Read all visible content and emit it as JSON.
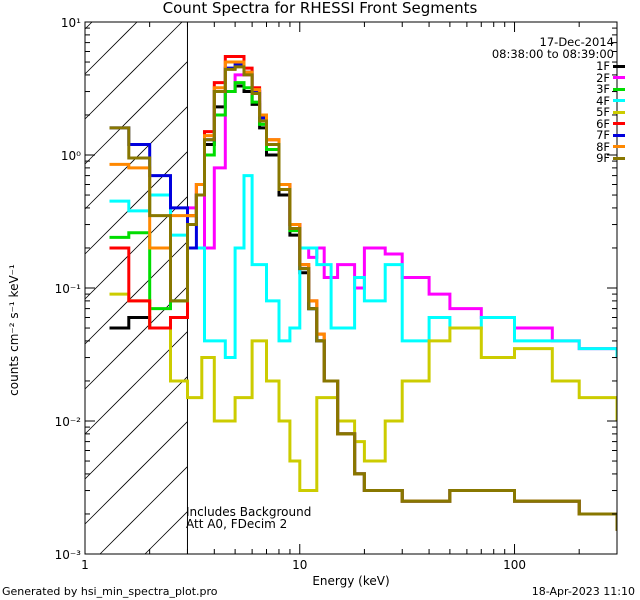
{
  "chart_data": {
    "type": "line",
    "title": "Count Spectra for RHESSI Front Segments",
    "xlabel": "Energy (keV)",
    "ylabel": "counts cm⁻² s⁻¹ keV⁻¹",
    "x_scale": "log",
    "y_scale": "log",
    "xlim": [
      1,
      300
    ],
    "ylim": [
      0.001,
      10
    ],
    "x_ticks": [
      1,
      10,
      100
    ],
    "x_tick_labels": [
      "1",
      "10",
      "100"
    ],
    "y_ticks": [
      0.001,
      0.01,
      0.1,
      1,
      10
    ],
    "y_tick_labels": [
      "10⁻³",
      "10⁻²",
      "10⁻¹",
      "10⁰",
      "10¹"
    ],
    "hatched_range": [
      1,
      3
    ],
    "date": "17-Dec-2014",
    "time_range": "08:38:00 to 08:39:00",
    "annotations": [
      "Includes Background",
      "Att A0, FDecim 2"
    ],
    "series": [
      {
        "name": "1F",
        "color": "#000000",
        "x": [
          1.3,
          1.6,
          2.0,
          2.5,
          3.0,
          3.3,
          3.6,
          4.0,
          4.5,
          5.0,
          5.5,
          6.0,
          6.5,
          7.0,
          8.0,
          9.0,
          10,
          11,
          12,
          13,
          15,
          18,
          20,
          30,
          50,
          100,
          200,
          300
        ],
        "y": [
          0.05,
          0.06,
          0.05,
          0.06,
          0.3,
          0.5,
          1.2,
          2.3,
          3.0,
          3.3,
          3.0,
          2.4,
          1.6,
          1.0,
          0.5,
          0.25,
          0.13,
          0.07,
          0.04,
          0.02,
          0.008,
          0.004,
          0.003,
          0.0025,
          0.003,
          0.0025,
          0.002,
          0.0015
        ]
      },
      {
        "name": "2F",
        "color": "#ff00ff",
        "x": [
          3.0,
          3.3,
          3.6,
          4.0,
          4.5,
          5.0,
          5.5,
          6.0,
          6.5,
          7.0,
          8.0,
          9.0,
          10,
          11,
          12,
          13,
          15,
          18,
          20,
          25,
          30,
          40,
          50,
          70,
          100,
          150,
          200,
          300
        ],
        "y": [
          0.4,
          0.6,
          0.2,
          0.8,
          3.0,
          4.0,
          4.0,
          3.0,
          2.0,
          1.2,
          0.6,
          0.3,
          0.2,
          0.17,
          0.2,
          0.12,
          0.15,
          0.1,
          0.2,
          0.18,
          0.12,
          0.09,
          0.07,
          0.06,
          0.05,
          0.04,
          0.035,
          0.03
        ]
      },
      {
        "name": "3F",
        "color": "#00dd00",
        "x": [
          1.3,
          1.6,
          2.0,
          2.5,
          3.0,
          3.3,
          3.6,
          4.0,
          4.5,
          5.0,
          5.5,
          6.0,
          6.5,
          7.0,
          8.0,
          9.0,
          10,
          11,
          12,
          13,
          15,
          18,
          20,
          30,
          50,
          100,
          200,
          300
        ],
        "y": [
          0.24,
          0.26,
          0.07,
          0.08,
          0.35,
          0.5,
          1.0,
          2.0,
          3.0,
          3.5,
          3.2,
          2.5,
          1.7,
          1.1,
          0.55,
          0.27,
          0.14,
          0.07,
          0.04,
          0.02,
          0.008,
          0.004,
          0.003,
          0.0025,
          0.003,
          0.0025,
          0.002,
          0.0015
        ]
      },
      {
        "name": "4F",
        "color": "#00ffff",
        "x": [
          1.3,
          1.6,
          2.0,
          2.5,
          3.0,
          3.6,
          4.5,
          5.0,
          5.5,
          6.0,
          7.0,
          8.0,
          9.0,
          10,
          12,
          14,
          18,
          20,
          25,
          30,
          40,
          50,
          70,
          100,
          150,
          200,
          300
        ],
        "y": [
          0.45,
          0.38,
          0.5,
          0.25,
          0.2,
          0.04,
          0.03,
          0.2,
          0.7,
          0.15,
          0.08,
          0.04,
          0.05,
          0.2,
          0.15,
          0.05,
          0.12,
          0.08,
          0.15,
          0.04,
          0.06,
          0.05,
          0.06,
          0.04,
          0.04,
          0.035,
          0.03
        ]
      },
      {
        "name": "5F",
        "color": "#cccc00",
        "x": [
          1.3,
          1.6,
          2.0,
          2.5,
          3.0,
          3.5,
          4.0,
          5.0,
          6.0,
          7.0,
          8.0,
          9.0,
          10,
          12,
          15,
          18,
          20,
          25,
          30,
          40,
          50,
          70,
          100,
          150,
          200,
          300
        ],
        "y": [
          0.09,
          0.08,
          0.05,
          0.02,
          0.015,
          0.03,
          0.01,
          0.015,
          0.04,
          0.02,
          0.01,
          0.005,
          0.003,
          0.015,
          0.01,
          0.007,
          0.005,
          0.01,
          0.02,
          0.04,
          0.05,
          0.03,
          0.035,
          0.02,
          0.015,
          0.01
        ]
      },
      {
        "name": "6F",
        "color": "#ff0000",
        "x": [
          1.3,
          1.6,
          2.0,
          2.5,
          3.0,
          3.3,
          3.6,
          4.0,
          4.5,
          5.0,
          5.5,
          6.0,
          6.5,
          7.0,
          8.0,
          9.0,
          10,
          11,
          12,
          13,
          15,
          18,
          20,
          30,
          50,
          100,
          200,
          300
        ],
        "y": [
          0.2,
          0.08,
          0.05,
          0.06,
          0.35,
          0.6,
          1.5,
          3.5,
          5.5,
          5.5,
          4.5,
          3.2,
          2.0,
          1.3,
          0.6,
          0.3,
          0.15,
          0.08,
          0.045,
          0.02,
          0.008,
          0.004,
          0.003,
          0.0025,
          0.003,
          0.0025,
          0.002,
          0.0015
        ]
      },
      {
        "name": "7F",
        "color": "#0000dd",
        "x": [
          1.3,
          1.6,
          2.0,
          2.5,
          3.0,
          3.3,
          3.6,
          4.0,
          4.5,
          5.0,
          5.5,
          6.0,
          6.5,
          7.0,
          8.0,
          9.0,
          10,
          11,
          12,
          13,
          15,
          18,
          20,
          30,
          50,
          100,
          200,
          300
        ],
        "y": [
          1.6,
          1.2,
          0.7,
          0.4,
          0.2,
          0.5,
          1.3,
          3.0,
          4.5,
          4.8,
          4.2,
          3.0,
          1.9,
          1.2,
          0.55,
          0.28,
          0.14,
          0.07,
          0.04,
          0.02,
          0.008,
          0.004,
          0.003,
          0.0025,
          0.003,
          0.0025,
          0.002,
          0.0015
        ]
      },
      {
        "name": "8F",
        "color": "#ff8800",
        "x": [
          1.3,
          1.6,
          2.0,
          2.5,
          3.0,
          3.3,
          3.6,
          4.0,
          4.5,
          5.0,
          5.5,
          6.0,
          6.5,
          7.0,
          8.0,
          9.0,
          10,
          11,
          12,
          13,
          15,
          18,
          20,
          30,
          50,
          100,
          200,
          300
        ],
        "y": [
          0.85,
          0.8,
          0.2,
          0.35,
          0.35,
          0.6,
          1.4,
          3.2,
          5.0,
          5.0,
          4.2,
          3.1,
          2.0,
          1.3,
          0.6,
          0.3,
          0.15,
          0.08,
          0.045,
          0.02,
          0.008,
          0.004,
          0.003,
          0.0025,
          0.003,
          0.0025,
          0.002,
          0.0015
        ]
      },
      {
        "name": "9F",
        "color": "#887700",
        "x": [
          1.3,
          1.6,
          2.0,
          2.5,
          3.0,
          3.3,
          3.6,
          4.0,
          4.5,
          5.0,
          5.5,
          6.0,
          6.5,
          7.0,
          8.0,
          9.0,
          10,
          11,
          12,
          13,
          15,
          18,
          20,
          30,
          50,
          100,
          200,
          300
        ],
        "y": [
          1.6,
          0.95,
          0.35,
          0.08,
          0.3,
          0.5,
          1.3,
          3.0,
          4.4,
          4.6,
          4.0,
          2.9,
          1.8,
          1.2,
          0.55,
          0.28,
          0.14,
          0.07,
          0.04,
          0.02,
          0.008,
          0.004,
          0.003,
          0.0025,
          0.003,
          0.0025,
          0.002,
          0.0015
        ]
      }
    ]
  },
  "footer": {
    "generated_by": "Generated by hsi_min_spectra_plot.pro",
    "timestamp": "18-Apr-2023 11:10"
  }
}
